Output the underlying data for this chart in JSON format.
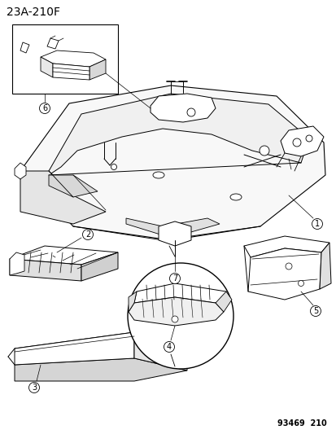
{
  "title": "23A-210F",
  "footer": "93469  210",
  "bg_color": "#ffffff",
  "line_color": "#000000",
  "title_fontsize": 10,
  "footer_fontsize": 7,
  "fig_width": 4.14,
  "fig_height": 5.33,
  "parts": [
    "1",
    "2",
    "3",
    "4",
    "5",
    "6",
    "7"
  ]
}
